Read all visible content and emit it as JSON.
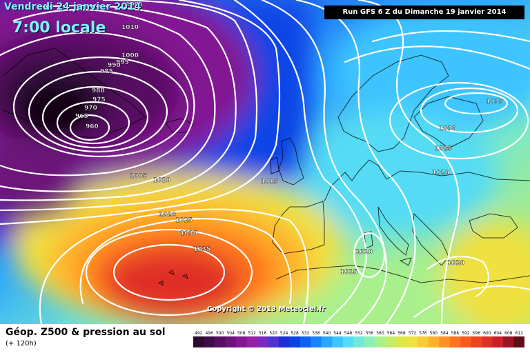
{
  "header": {
    "valid_date": "Vendredi 24 janvier 2014",
    "valid_time": "7:00 locale",
    "run_info": "Run GFS 6 Z du Dimanche 19 janvier 2014"
  },
  "footer": {
    "title": "Géop. Z500 & pression au sol",
    "lead_time": "(+ 120h)",
    "copyright": "Copyright © 2013 Meteociel.fr"
  },
  "legend": {
    "values": [
      "492",
      "496",
      "500",
      "504",
      "508",
      "512",
      "516",
      "520",
      "524",
      "528",
      "532",
      "536",
      "540",
      "544",
      "548",
      "552",
      "556",
      "560",
      "564",
      "568",
      "572",
      "576",
      "580",
      "584",
      "588",
      "592",
      "596",
      "600",
      "604",
      "608",
      "612"
    ],
    "colors": [
      "#2a0a30",
      "#3f0c4a",
      "#560f62",
      "#6c137a",
      "#831892",
      "#971ea8",
      "#7b2ac0",
      "#4f35d0",
      "#1d30d8",
      "#0a44e6",
      "#0d62f2",
      "#1a84ff",
      "#2aa6ff",
      "#3cc4ff",
      "#55dbf5",
      "#70e8da",
      "#8cf0b6",
      "#a9f08c",
      "#c4ec64",
      "#dce84a",
      "#f0e040",
      "#f8cc36",
      "#ffb02c",
      "#ff9224",
      "#ff741e",
      "#fb5a1c",
      "#ef421e",
      "#e02e26",
      "#c81e2a",
      "#9a1424",
      "#600c18"
    ]
  },
  "map": {
    "pressure_labels": [
      "1005",
      "1010",
      "1000",
      "995",
      "990",
      "985",
      "980",
      "975",
      "970",
      "965",
      "960",
      "1005",
      "1010",
      "1015",
      "1020",
      "1025",
      "1030",
      "1035",
      "1035",
      "1030",
      "1025",
      "1020",
      "1010",
      "1015",
      "1020"
    ],
    "pressure_field": {
      "lows": [
        {
          "center": [
            -38,
            59
          ],
          "value_hpa": 960
        }
      ],
      "highs": [
        {
          "center": [
            -28,
            32
          ],
          "value_hpa": 1035
        },
        {
          "center": [
            28,
            62
          ],
          "value_hpa": 1035
        }
      ]
    }
  }
}
